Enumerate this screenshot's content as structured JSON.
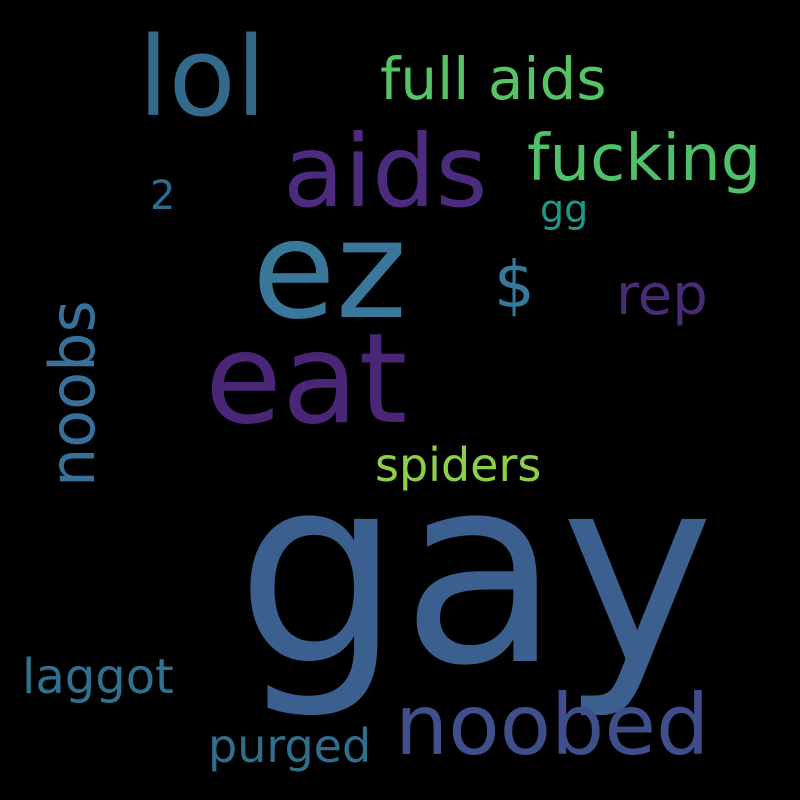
{
  "words": [
    {
      "id": "gay",
      "text": "gay",
      "color": "#3b5f8e",
      "orientation": "horizontal"
    },
    {
      "id": "ez",
      "text": "ez",
      "color": "#39789b",
      "orientation": "horizontal"
    },
    {
      "id": "eat",
      "text": "eat",
      "color": "#4a2676",
      "orientation": "horizontal"
    },
    {
      "id": "lol",
      "text": "lol",
      "color": "#336a8c",
      "orientation": "horizontal"
    },
    {
      "id": "aids",
      "text": "aids",
      "color": "#4c2a7e",
      "orientation": "horizontal"
    },
    {
      "id": "noobed",
      "text": "noobed",
      "color": "#3f4f8c",
      "orientation": "horizontal"
    },
    {
      "id": "fucking",
      "text": "fucking",
      "color": "#4fc06a",
      "orientation": "horizontal"
    },
    {
      "id": "full-aids",
      "text": "full aids",
      "color": "#55c464",
      "orientation": "horizontal"
    },
    {
      "id": "noobs",
      "text": "noobs",
      "color": "#37709a",
      "orientation": "vertical"
    },
    {
      "id": "dollar",
      "text": "$",
      "color": "#357a9c",
      "orientation": "horizontal"
    },
    {
      "id": "rep",
      "text": "rep",
      "color": "#4a2b76",
      "orientation": "horizontal"
    },
    {
      "id": "spiders",
      "text": "spiders",
      "color": "#8dd048",
      "orientation": "horizontal"
    },
    {
      "id": "purged",
      "text": "purged",
      "color": "#306f8c",
      "orientation": "horizontal"
    },
    {
      "id": "laggot",
      "text": "laggot",
      "color": "#2f7190",
      "orientation": "horizontal"
    },
    {
      "id": "two",
      "text": "2",
      "color": "#2e6c8e",
      "orientation": "horizontal"
    },
    {
      "id": "gg",
      "text": "gg",
      "color": "#1f9a8a",
      "orientation": "horizontal"
    }
  ]
}
